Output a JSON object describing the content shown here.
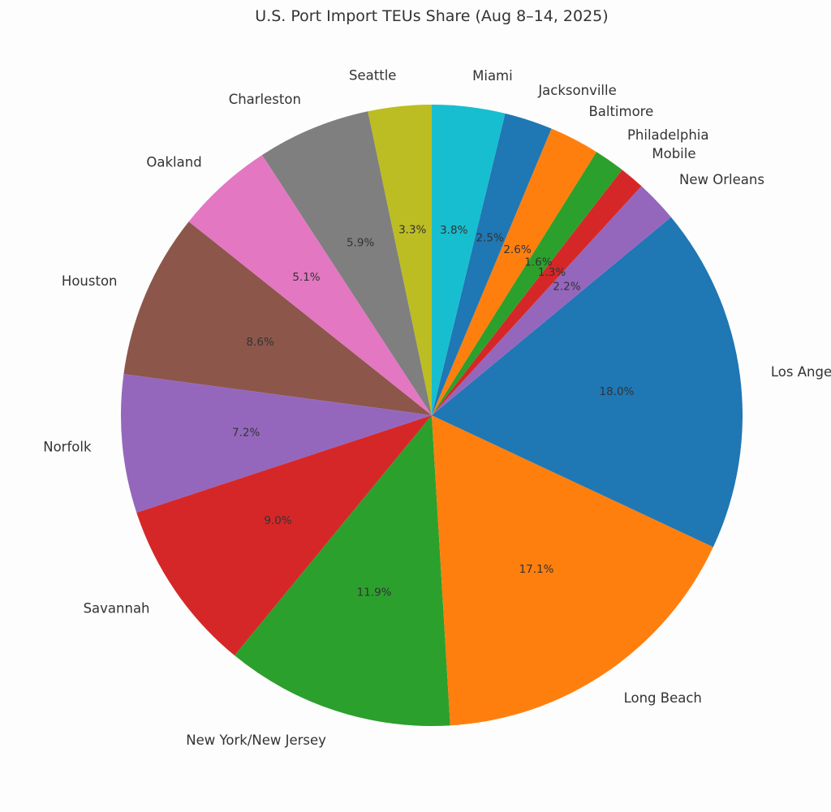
{
  "chart_data": {
    "type": "pie",
    "title": "U.S. Port Import TEUs Share (Aug 8–14, 2025)",
    "start_angle_deg": 90,
    "direction": "counterclockwise",
    "slices": [
      {
        "label": "Seattle",
        "value": 3.3,
        "pct_text": "3.3%",
        "color": "#bcbd22"
      },
      {
        "label": "Charleston",
        "value": 5.9,
        "pct_text": "5.9%",
        "color": "#7f7f7f"
      },
      {
        "label": "Oakland",
        "value": 5.1,
        "pct_text": "5.1%",
        "color": "#e377c2"
      },
      {
        "label": "Houston",
        "value": 8.6,
        "pct_text": "8.6%",
        "color": "#8c564b"
      },
      {
        "label": "Norfolk",
        "value": 7.2,
        "pct_text": "7.2%",
        "color": "#9467bd"
      },
      {
        "label": "Savannah",
        "value": 9.0,
        "pct_text": "9.0%",
        "color": "#d62728"
      },
      {
        "label": "New York/New Jersey",
        "value": 11.9,
        "pct_text": "11.9%",
        "color": "#2ca02c"
      },
      {
        "label": "Long Beach",
        "value": 17.1,
        "pct_text": "17.1%",
        "color": "#ff7f0e"
      },
      {
        "label": "Los Angeles",
        "value": 18.0,
        "pct_text": "18.0%",
        "color": "#1f77b4"
      },
      {
        "label": "New Orleans",
        "value": 2.2,
        "pct_text": "2.2%",
        "color": "#9467bd"
      },
      {
        "label": "Mobile",
        "value": 1.3,
        "pct_text": "1.3%",
        "color": "#d62728"
      },
      {
        "label": "Philadelphia",
        "value": 1.6,
        "pct_text": "1.6%",
        "color": "#2ca02c"
      },
      {
        "label": "Baltimore",
        "value": 2.6,
        "pct_text": "2.6%",
        "color": "#ff7f0e"
      },
      {
        "label": "Jacksonville",
        "value": 2.5,
        "pct_text": "2.5%",
        "color": "#1f77b4"
      },
      {
        "label": "Miami",
        "value": 3.8,
        "pct_text": "3.8%",
        "color": "#17becf"
      }
    ]
  }
}
